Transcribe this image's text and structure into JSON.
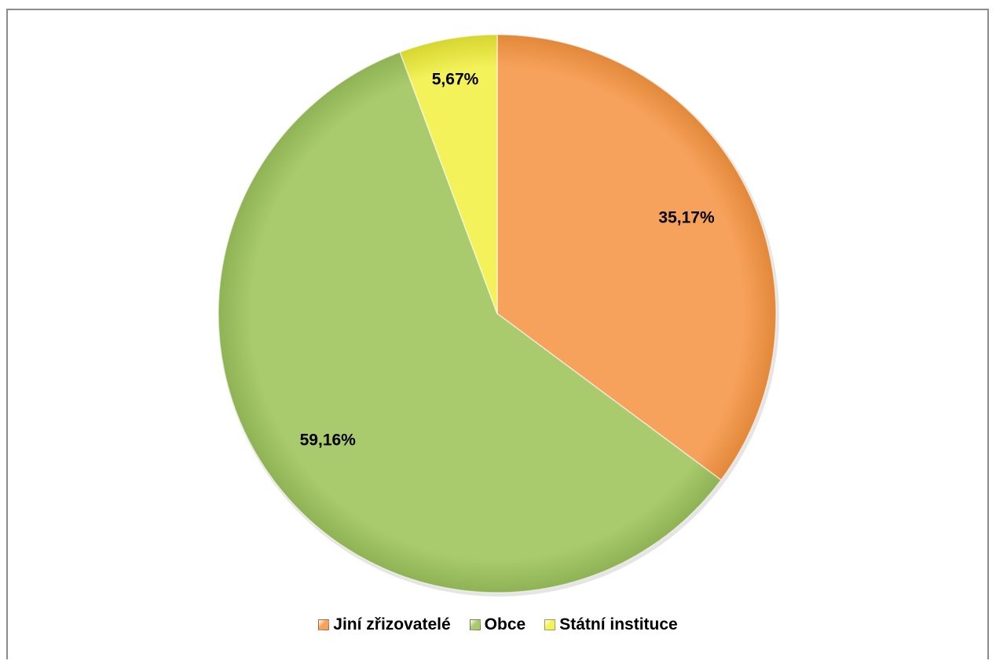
{
  "chart_data": {
    "type": "pie",
    "title": "",
    "categories": [
      "Jiní zřizovatelé",
      "Obce",
      "Státní instituce"
    ],
    "values": [
      35.17,
      59.16,
      5.67
    ],
    "data_labels": [
      "35,17%",
      "59,16%",
      "5,67%"
    ],
    "colors": [
      "#f7a25c",
      "#a9cb6e",
      "#f3f25a"
    ],
    "edge_colors": [
      "#e2883a",
      "#8fb254",
      "#d6d530"
    ],
    "start_angle_deg": 0,
    "direction": "clockwise",
    "legend": "bottom",
    "legend_entries": [
      {
        "label": "Jiní zřizovatelé",
        "color": "#f7a25c"
      },
      {
        "label": "Obce",
        "color": "#a9cb6e"
      },
      {
        "label": "Státní instituce",
        "color": "#f3f25a"
      }
    ]
  }
}
